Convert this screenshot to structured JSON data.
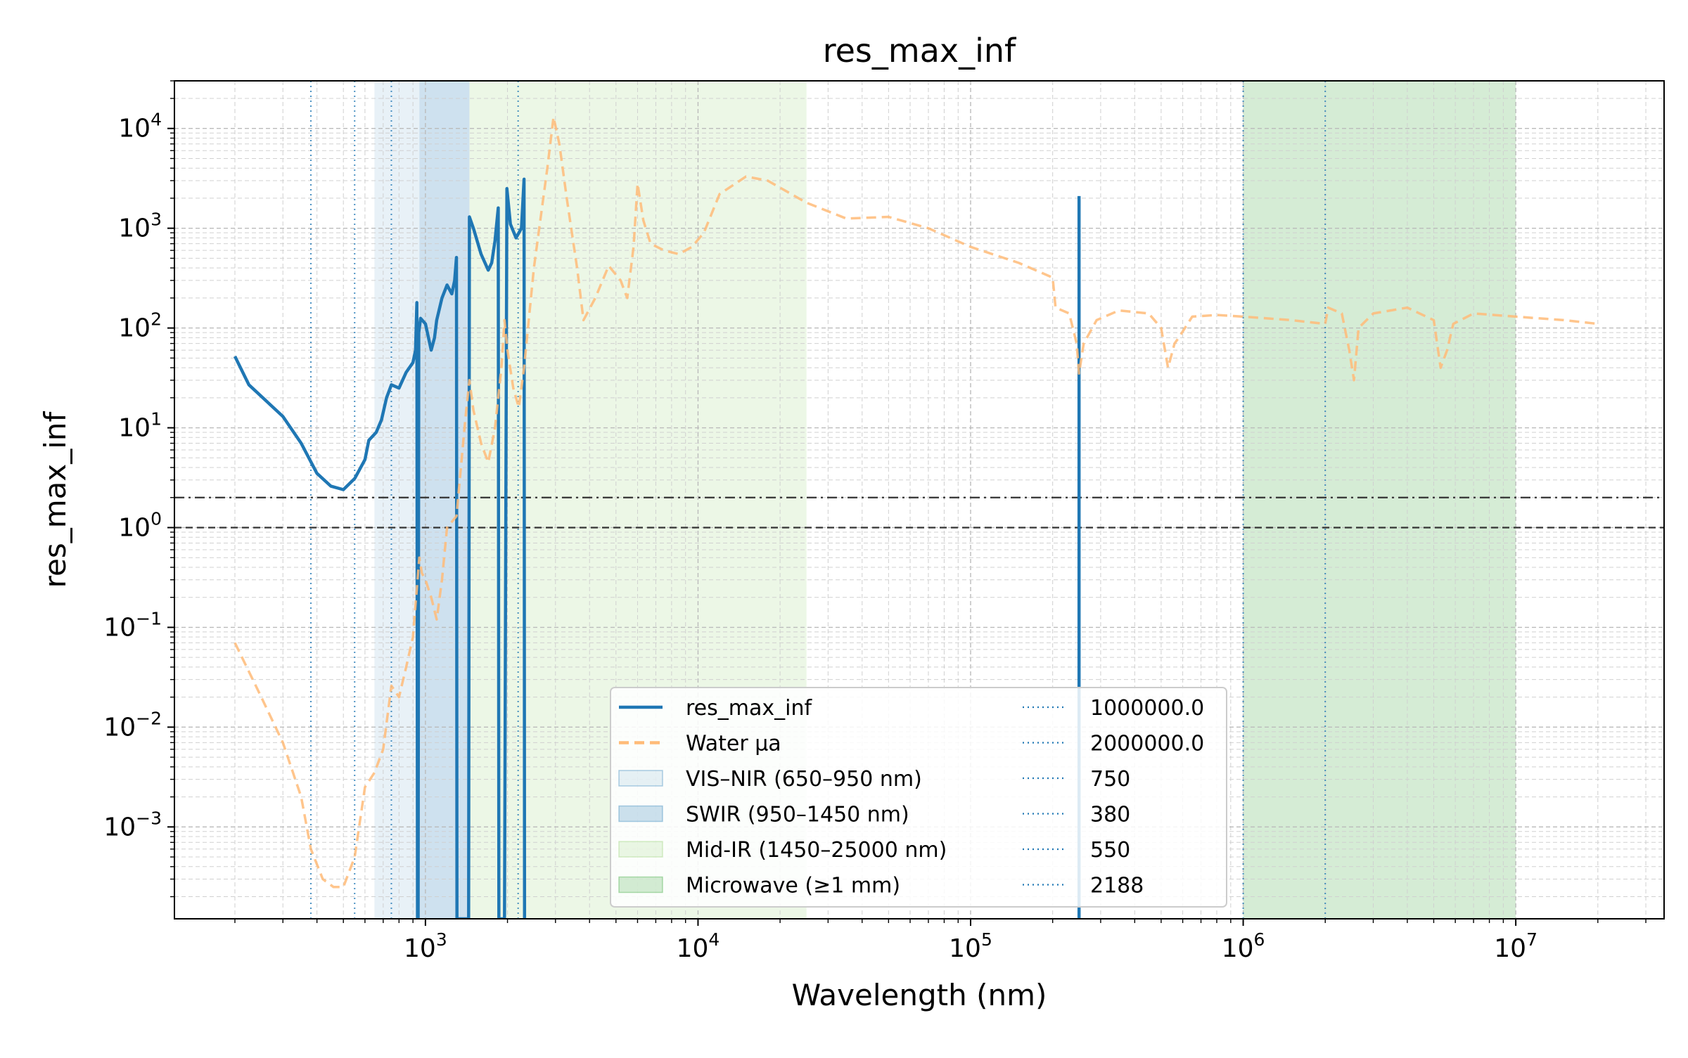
{
  "chart_data": {
    "type": "line",
    "title": "res_max_inf",
    "xlabel": "Wavelength (nm)",
    "ylabel": "res_max_inf",
    "xscale": "log",
    "yscale": "log",
    "xlim": [
      120,
      35000000
    ],
    "ylim": [
      0.00012,
      30000
    ],
    "grid": true,
    "legend_position": "bottom-center",
    "x_tick_labels": [
      {
        "value": 1000,
        "base": "10",
        "exp": "3"
      },
      {
        "value": 10000,
        "base": "10",
        "exp": "4"
      },
      {
        "value": 100000,
        "base": "10",
        "exp": "5"
      },
      {
        "value": 1000000,
        "base": "10",
        "exp": "6"
      },
      {
        "value": 10000000,
        "base": "10",
        "exp": "7"
      }
    ],
    "y_tick_labels": [
      {
        "value": 0.001,
        "base": "10",
        "exp": "−3"
      },
      {
        "value": 0.01,
        "base": "10",
        "exp": "−2"
      },
      {
        "value": 0.1,
        "base": "10",
        "exp": "−1"
      },
      {
        "value": 1,
        "base": "10",
        "exp": "0"
      },
      {
        "value": 10,
        "base": "10",
        "exp": "1"
      },
      {
        "value": 100,
        "base": "10",
        "exp": "2"
      },
      {
        "value": 1000,
        "base": "10",
        "exp": "3"
      },
      {
        "value": 10000,
        "base": "10",
        "exp": "4"
      }
    ],
    "bands": [
      {
        "name": "VIS–NIR (650–950 nm)",
        "x": [
          650,
          950
        ],
        "color": "#1f77b4",
        "opacity": 0.1
      },
      {
        "name": "SWIR (950–1450 nm)",
        "x": [
          950,
          1450
        ],
        "color": "#1f77b4",
        "opacity": 0.22
      },
      {
        "name": "Mid-IR (1450–25000 nm)",
        "x": [
          1450,
          25000
        ],
        "color": "#8fd06a",
        "opacity": 0.17
      },
      {
        "name": "Microwave (≥1 mm)",
        "x": [
          1000000,
          10000000
        ],
        "color": "#2ca02c",
        "opacity": 0.2
      }
    ],
    "vlines": [
      {
        "label": "1000000.0",
        "x": 1000000,
        "color": "#1f77b4"
      },
      {
        "label": "2000000.0",
        "x": 2000000,
        "color": "#1f77b4"
      },
      {
        "label": "750",
        "x": 750,
        "color": "#1f77b4"
      },
      {
        "label": "380",
        "x": 380,
        "color": "#1f77b4"
      },
      {
        "label": "550",
        "x": 550,
        "color": "#1f77b4"
      },
      {
        "label": "2188",
        "x": 2188,
        "color": "#1f77b4"
      }
    ],
    "hlines": [
      {
        "y": 2,
        "style": "dashdot",
        "color": "#333333"
      },
      {
        "y": 1,
        "style": "dashed",
        "color": "#333333"
      }
    ],
    "series": [
      {
        "name": "res_max_inf",
        "color": "#1f77b4",
        "style": "solid",
        "points": [
          [
            200,
            52
          ],
          [
            225,
            27
          ],
          [
            300,
            13
          ],
          [
            350,
            7
          ],
          [
            400,
            3.5
          ],
          [
            450,
            2.6
          ],
          [
            500,
            2.4
          ],
          [
            550,
            3.1
          ],
          [
            600,
            4.8
          ],
          [
            620,
            7.5
          ],
          [
            660,
            9
          ],
          [
            690,
            12
          ],
          [
            720,
            20
          ],
          [
            750,
            27
          ],
          [
            800,
            25
          ],
          [
            850,
            36
          ],
          [
            900,
            45
          ],
          [
            920,
            60
          ],
          [
            930,
            180
          ],
          [
            935,
            0.00012
          ],
          [
            940,
            0.00012
          ],
          [
            945,
            90
          ],
          [
            960,
            125
          ],
          [
            1000,
            110
          ],
          [
            1050,
            60
          ],
          [
            1080,
            80
          ],
          [
            1100,
            120
          ],
          [
            1150,
            200
          ],
          [
            1200,
            270
          ],
          [
            1250,
            220
          ],
          [
            1280,
            300
          ],
          [
            1300,
            510
          ],
          [
            1305,
            0.00012
          ],
          [
            1320,
            0.00012
          ],
          [
            1340,
            0.00012
          ],
          [
            1360,
            0.00012
          ],
          [
            1380,
            0.00012
          ],
          [
            1400,
            0.00012
          ],
          [
            1420,
            0.00012
          ],
          [
            1440,
            0.00012
          ],
          [
            1450,
            1300
          ],
          [
            1500,
            1000
          ],
          [
            1600,
            550
          ],
          [
            1700,
            380
          ],
          [
            1750,
            450
          ],
          [
            1800,
            750
          ],
          [
            1850,
            1600
          ],
          [
            1860,
            0.00012
          ],
          [
            1900,
            0.00012
          ],
          [
            1950,
            0.00012
          ],
          [
            1990,
            2500
          ],
          [
            2050,
            1100
          ],
          [
            2150,
            800
          ],
          [
            2250,
            1000
          ],
          [
            2300,
            3100
          ],
          [
            2310,
            0.00012
          ]
        ]
      },
      {
        "name": "res_max_inf_spike",
        "color": "#1f77b4",
        "style": "solid",
        "points": [
          [
            250000,
            0.00012
          ],
          [
            250000,
            2100
          ]
        ]
      },
      {
        "name": "Water μa",
        "color": "#ffbb78",
        "style": "dashed",
        "points": [
          [
            200,
            0.07
          ],
          [
            250,
            0.02
          ],
          [
            300,
            0.007
          ],
          [
            350,
            0.002
          ],
          [
            380,
            0.0006
          ],
          [
            420,
            0.0003
          ],
          [
            460,
            0.00025
          ],
          [
            500,
            0.00025
          ],
          [
            550,
            0.0005
          ],
          [
            600,
            0.0025
          ],
          [
            650,
            0.0035
          ],
          [
            700,
            0.006
          ],
          [
            750,
            0.026
          ],
          [
            800,
            0.02
          ],
          [
            850,
            0.04
          ],
          [
            900,
            0.08
          ],
          [
            950,
            0.5
          ],
          [
            970,
            0.35
          ],
          [
            1000,
            0.3
          ],
          [
            1050,
            0.2
          ],
          [
            1100,
            0.12
          ],
          [
            1150,
            0.3
          ],
          [
            1200,
            1.0
          ],
          [
            1300,
            1.3
          ],
          [
            1400,
            12
          ],
          [
            1450,
            30
          ],
          [
            1500,
            15
          ],
          [
            1600,
            7
          ],
          [
            1700,
            4.5
          ],
          [
            1800,
            10
          ],
          [
            1900,
            40
          ],
          [
            1950,
            120
          ],
          [
            2000,
            60
          ],
          [
            2100,
            25
          ],
          [
            2200,
            16
          ],
          [
            2300,
            40
          ],
          [
            2500,
            400
          ],
          [
            2800,
            4000
          ],
          [
            2950,
            13000
          ],
          [
            3100,
            7000
          ],
          [
            3300,
            2000
          ],
          [
            3600,
            400
          ],
          [
            3800,
            120
          ],
          [
            4200,
            200
          ],
          [
            4700,
            420
          ],
          [
            5200,
            300
          ],
          [
            5500,
            200
          ],
          [
            5800,
            650
          ],
          [
            6000,
            2800
          ],
          [
            6300,
            1200
          ],
          [
            6700,
            700
          ],
          [
            7500,
            600
          ],
          [
            8500,
            550
          ],
          [
            9500,
            650
          ],
          [
            10500,
            900
          ],
          [
            12000,
            2200
          ],
          [
            15000,
            3300
          ],
          [
            18000,
            3000
          ],
          [
            25000,
            1800
          ],
          [
            35000,
            1250
          ],
          [
            50000,
            1300
          ],
          [
            70000,
            1000
          ],
          [
            100000,
            650
          ],
          [
            150000,
            450
          ],
          [
            200000,
            320
          ],
          [
            205000,
            160
          ],
          [
            230000,
            140
          ],
          [
            245000,
            70
          ],
          [
            250000,
            35
          ],
          [
            260000,
            70
          ],
          [
            290000,
            120
          ],
          [
            350000,
            150
          ],
          [
            450000,
            140
          ],
          [
            500000,
            100
          ],
          [
            530000,
            40
          ],
          [
            560000,
            70
          ],
          [
            580000,
            80
          ],
          [
            650000,
            130
          ],
          [
            800000,
            135
          ],
          [
            1000000,
            130
          ],
          [
            1500000,
            120
          ],
          [
            2000000,
            110
          ],
          [
            2050000,
            160
          ],
          [
            2300000,
            140
          ],
          [
            2450000,
            60
          ],
          [
            2550000,
            30
          ],
          [
            2650000,
            100
          ],
          [
            3000000,
            140
          ],
          [
            4000000,
            160
          ],
          [
            5000000,
            120
          ],
          [
            5300000,
            40
          ],
          [
            5600000,
            60
          ],
          [
            5900000,
            110
          ],
          [
            7000000,
            140
          ],
          [
            10000000,
            130
          ],
          [
            15000000,
            120
          ],
          [
            20000000,
            110
          ]
        ]
      }
    ],
    "legend": {
      "left": [
        {
          "label": "res_max_inf",
          "kind": "line",
          "color": "#1f77b4",
          "dash": "solid"
        },
        {
          "label": "Water μa",
          "kind": "line",
          "color": "#ffbb78",
          "dash": "dashed"
        },
        {
          "label": "VIS–NIR (650–950 nm)",
          "kind": "patch",
          "color": "#1f77b4",
          "opacity": 0.1
        },
        {
          "label": "SWIR (950–1450 nm)",
          "kind": "patch",
          "color": "#1f77b4",
          "opacity": 0.22
        },
        {
          "label": "Mid-IR (1450–25000 nm)",
          "kind": "patch",
          "color": "#8fd06a",
          "opacity": 0.17
        },
        {
          "label": "Microwave (≥1 mm)",
          "kind": "patch",
          "color": "#2ca02c",
          "opacity": 0.2
        }
      ],
      "right": [
        {
          "label": "1000000.0",
          "kind": "line",
          "color": "#1f77b4",
          "dash": "dotted"
        },
        {
          "label": "2000000.0",
          "kind": "line",
          "color": "#1f77b4",
          "dash": "dotted"
        },
        {
          "label": "750",
          "kind": "line",
          "color": "#1f77b4",
          "dash": "dotted"
        },
        {
          "label": "380",
          "kind": "line",
          "color": "#1f77b4",
          "dash": "dotted"
        },
        {
          "label": "550",
          "kind": "line",
          "color": "#1f77b4",
          "dash": "dotted"
        },
        {
          "label": "2188",
          "kind": "line",
          "color": "#1f77b4",
          "dash": "dotted"
        }
      ]
    }
  }
}
